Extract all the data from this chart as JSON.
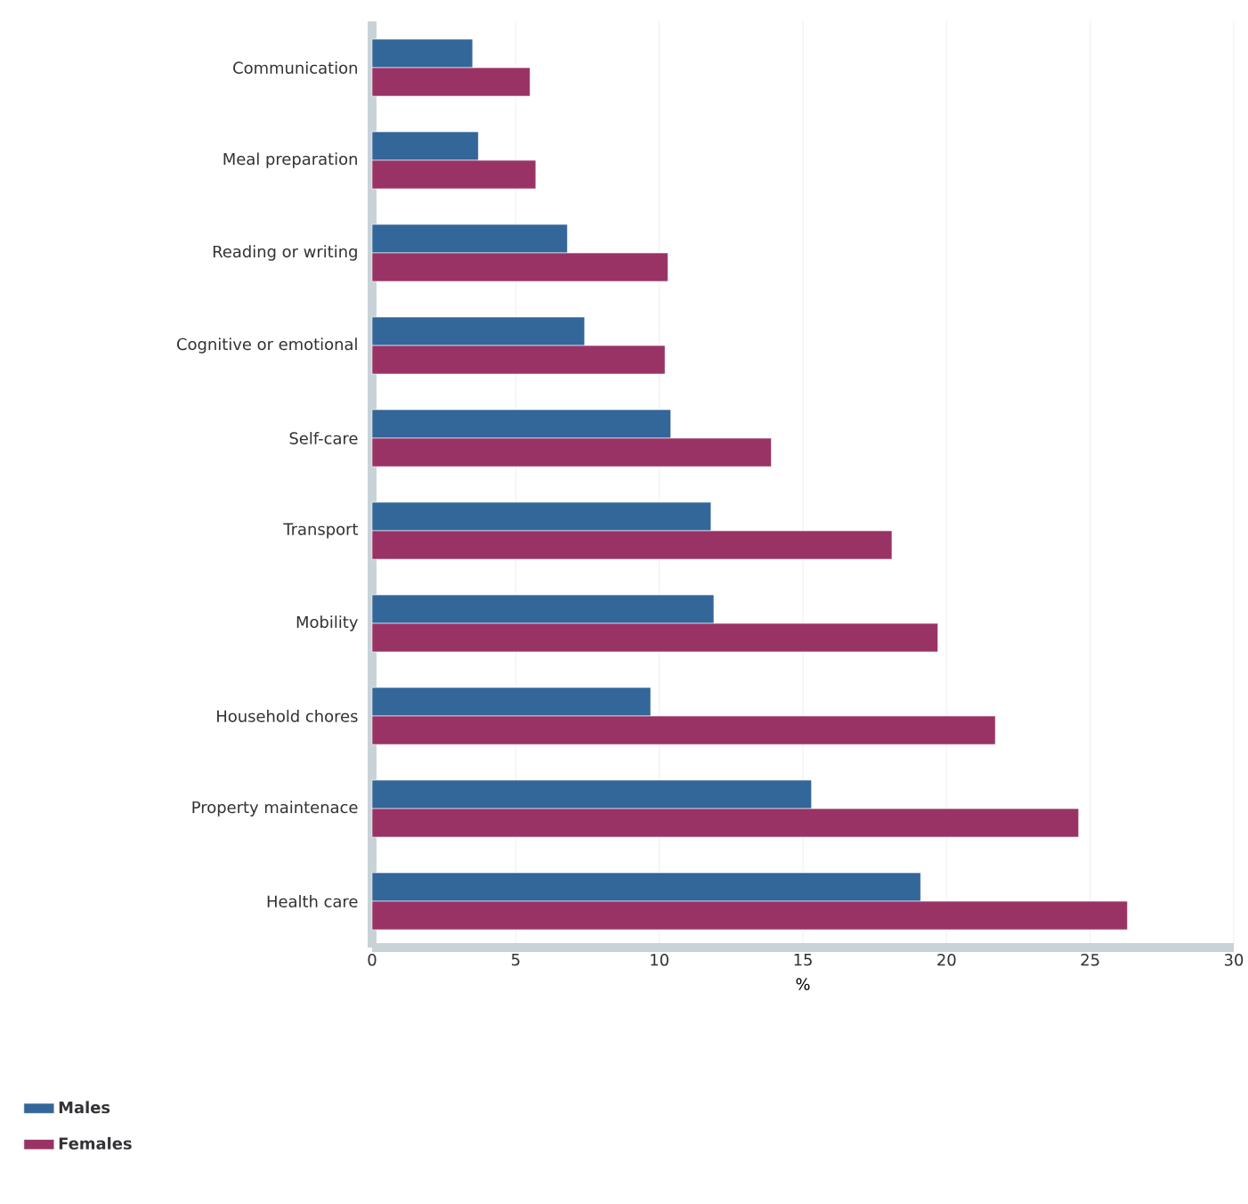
{
  "chart_data": {
    "type": "bar",
    "orientation": "horizontal",
    "xlabel": "%",
    "categories": [
      "Communication",
      "Meal preparation",
      "Reading or writing",
      "Cognitive or emotional",
      "Self-care",
      "Transport",
      "Mobility",
      "Household chores",
      "Property maintenace",
      "Health care"
    ],
    "series": [
      {
        "name": "Males",
        "color": "#336699",
        "values": [
          3.5,
          3.7,
          6.8,
          7.4,
          10.4,
          11.8,
          11.9,
          9.7,
          15.3,
          19.1
        ]
      },
      {
        "name": "Females",
        "color": "#993366",
        "values": [
          5.5,
          5.7,
          10.3,
          10.2,
          13.9,
          18.1,
          19.7,
          21.7,
          24.6,
          26.3
        ]
      }
    ],
    "xlim": [
      0,
      30
    ],
    "xticks": [
      0,
      5,
      10,
      15,
      20,
      25,
      30
    ],
    "grid": "x",
    "legend": "bottom left"
  }
}
